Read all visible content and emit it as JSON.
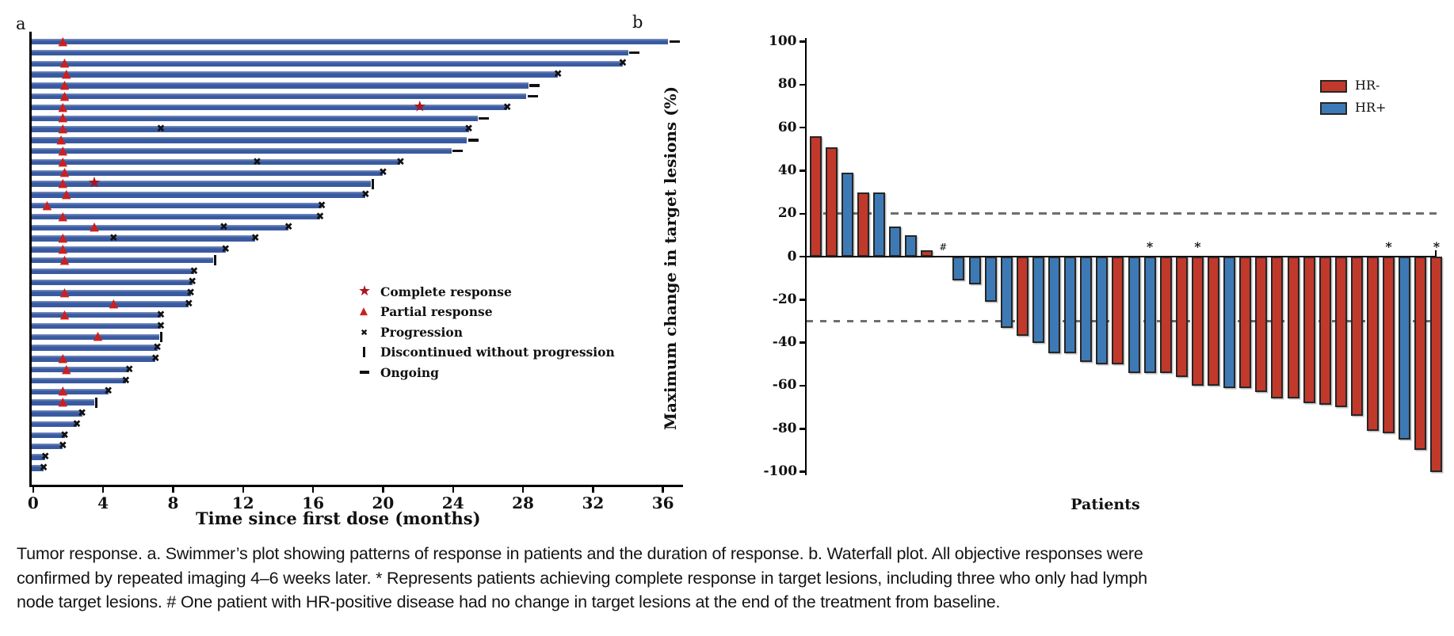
{
  "colors": {
    "swimmer_bar": "#3A5AA0",
    "swimmer_bar_highlight": "#8096C4",
    "hr_neg_red": "#C0392B",
    "hr_pos_blue": "#3D7AB5",
    "bar_border": "#262626",
    "triangle_red": "#CC2020",
    "star_red": "#A8151F",
    "marker_black": "#111111",
    "dash_gray": "#6E6E6E",
    "axis_black": "#000000"
  },
  "panel_a": {
    "label": "a",
    "xlabel": "Time since first dose (months)",
    "legend": [
      {
        "glyph": "star",
        "label": "Complete response"
      },
      {
        "glyph": "triangle",
        "label": "Partial response"
      },
      {
        "glyph": "x",
        "label": "Progression"
      },
      {
        "glyph": "bar",
        "label": "Discontinued without progression"
      },
      {
        "glyph": "dash",
        "label": "Ongoing"
      }
    ]
  },
  "panel_b": {
    "label": "b",
    "ylabel": "Maximum change in target lesions (%)",
    "xlabel": "Patients",
    "legend": [
      {
        "label": "HR-",
        "color": "#C0392B"
      },
      {
        "label": "HR+",
        "color": "#3D7AB5"
      }
    ]
  },
  "caption": {
    "lines": [
      "Tumor response. a. Swimmer’s plot showing patterns of response in patients and the duration of response. b. Waterfall plot. All objective responses were",
      "confirmed by repeated imaging 4–6 weeks later. * Represents patients achieving complete response in target lesions, including three who only had lymph",
      "node target lesions. # One patient with HR-positive disease had no change in target lesions at the end of the treatment from baseline."
    ]
  },
  "chart_data": [
    {
      "type": "bar",
      "subtype": "swimmer",
      "title": "a. Swimmer's plot: duration of treatment per patient (months)",
      "xlabel": "Time since first dose (months)",
      "xlim": [
        0,
        37.2
      ],
      "x_ticks": [
        0,
        4,
        8,
        12,
        16,
        20,
        24,
        28,
        32,
        36
      ],
      "grid": false,
      "marker_meanings": {
        "triangle": "Partial response",
        "star": "Complete response",
        "x": "Progression",
        "disc": "Discontinued without progression",
        "ongoing": "Ongoing"
      },
      "patients": [
        {
          "duration": 36.3,
          "end": "ongoing",
          "triangle": 1.7
        },
        {
          "duration": 34.0,
          "end": "ongoing"
        },
        {
          "duration": 33.7,
          "end": "x",
          "triangle": 1.8
        },
        {
          "duration": 30.0,
          "end": "x",
          "triangle": 1.9
        },
        {
          "duration": 28.3,
          "end": "ongoing",
          "triangle": 1.8
        },
        {
          "duration": 28.2,
          "end": "ongoing",
          "triangle": 1.8
        },
        {
          "duration": 27.1,
          "end": "x",
          "triangle": 1.7,
          "star": 22.1
        },
        {
          "duration": 25.4,
          "end": "ongoing",
          "triangle": 1.7
        },
        {
          "duration": 24.9,
          "end": "x",
          "triangle": 1.7,
          "x_mid": 7.3
        },
        {
          "duration": 24.8,
          "end": "ongoing",
          "triangle": 1.6
        },
        {
          "duration": 23.9,
          "end": "ongoing",
          "triangle": 1.7
        },
        {
          "duration": 21.0,
          "end": "x",
          "triangle": 1.7,
          "x_mid": 12.8
        },
        {
          "duration": 20.0,
          "end": "x",
          "triangle": 1.8
        },
        {
          "duration": 19.3,
          "end": "disc",
          "triangle": 1.7,
          "star": 3.5
        },
        {
          "duration": 19.0,
          "end": "x",
          "triangle": 1.9
        },
        {
          "duration": 16.5,
          "end": "x",
          "triangle": 0.8
        },
        {
          "duration": 16.4,
          "end": "x",
          "triangle": 1.7
        },
        {
          "duration": 14.6,
          "end": "x",
          "triangle": 3.5,
          "x_mid": 10.9
        },
        {
          "duration": 12.7,
          "end": "x",
          "triangle": 1.7,
          "x_mid": 4.6
        },
        {
          "duration": 11.0,
          "end": "x",
          "triangle": 1.7
        },
        {
          "duration": 10.3,
          "end": "disc",
          "triangle": 1.8
        },
        {
          "duration": 9.2,
          "end": "x"
        },
        {
          "duration": 9.1,
          "end": "x"
        },
        {
          "duration": 9.0,
          "end": "x",
          "triangle": 1.8
        },
        {
          "duration": 8.9,
          "end": "x",
          "triangle": 4.6
        },
        {
          "duration": 7.3,
          "end": "x",
          "triangle": 1.8
        },
        {
          "duration": 7.3,
          "end": "x"
        },
        {
          "duration": 7.2,
          "end": "disc",
          "triangle": 3.7
        },
        {
          "duration": 7.1,
          "end": "x"
        },
        {
          "duration": 7.0,
          "end": "x",
          "triangle": 1.7
        },
        {
          "duration": 5.5,
          "end": "x",
          "triangle": 1.9
        },
        {
          "duration": 5.3,
          "end": "x"
        },
        {
          "duration": 4.3,
          "end": "x",
          "triangle": 1.7
        },
        {
          "duration": 3.5,
          "end": "disc",
          "triangle": 1.7
        },
        {
          "duration": 2.8,
          "end": "x"
        },
        {
          "duration": 2.5,
          "end": "x"
        },
        {
          "duration": 1.8,
          "end": "x"
        },
        {
          "duration": 1.7,
          "end": "x"
        },
        {
          "duration": 0.7,
          "end": "x"
        },
        {
          "duration": 0.6,
          "end": "x"
        }
      ]
    },
    {
      "type": "bar",
      "subtype": "waterfall",
      "title": "b. Waterfall plot: maximum change in target lesions (%)",
      "ylabel": "Maximum change in target lesions (%)",
      "xlabel": "Patients",
      "ylim": [
        -100,
        100
      ],
      "y_ticks": [
        100,
        80,
        60,
        40,
        20,
        0,
        -20,
        -40,
        -60,
        -80,
        -100
      ],
      "reference_lines": [
        20,
        -30
      ],
      "legend_position": "top-right",
      "series_legend": [
        {
          "name": "HR-",
          "color": "#C0392B"
        },
        {
          "name": "HR+",
          "color": "#3D7AB5"
        }
      ],
      "bars": [
        {
          "value": 56,
          "group": "HR-"
        },
        {
          "value": 51,
          "group": "HR-"
        },
        {
          "value": 39,
          "group": "HR+"
        },
        {
          "value": 30,
          "group": "HR-"
        },
        {
          "value": 30,
          "group": "HR+"
        },
        {
          "value": 14,
          "group": "HR+"
        },
        {
          "value": 10,
          "group": "HR+"
        },
        {
          "value": 3,
          "group": "HR-"
        },
        {
          "value": 0,
          "group": "HR+",
          "note": "#"
        },
        {
          "value": -11,
          "group": "HR+"
        },
        {
          "value": -13,
          "group": "HR+"
        },
        {
          "value": -21,
          "group": "HR+"
        },
        {
          "value": -33,
          "group": "HR+"
        },
        {
          "value": -37,
          "group": "HR-"
        },
        {
          "value": -40,
          "group": "HR+"
        },
        {
          "value": -45,
          "group": "HR+"
        },
        {
          "value": -45,
          "group": "HR+"
        },
        {
          "value": -49,
          "group": "HR+"
        },
        {
          "value": -50,
          "group": "HR+"
        },
        {
          "value": -50,
          "group": "HR-"
        },
        {
          "value": -54,
          "group": "HR+"
        },
        {
          "value": -54,
          "group": "HR+",
          "note": "*"
        },
        {
          "value": -54,
          "group": "HR-"
        },
        {
          "value": -56,
          "group": "HR-"
        },
        {
          "value": -60,
          "group": "HR-",
          "note": "*"
        },
        {
          "value": -60,
          "group": "HR-"
        },
        {
          "value": -61,
          "group": "HR+"
        },
        {
          "value": -61,
          "group": "HR-"
        },
        {
          "value": -63,
          "group": "HR-"
        },
        {
          "value": -66,
          "group": "HR-"
        },
        {
          "value": -66,
          "group": "HR-"
        },
        {
          "value": -68,
          "group": "HR-"
        },
        {
          "value": -69,
          "group": "HR-"
        },
        {
          "value": -70,
          "group": "HR-"
        },
        {
          "value": -74,
          "group": "HR-"
        },
        {
          "value": -81,
          "group": "HR-"
        },
        {
          "value": -82,
          "group": "HR-",
          "note": "*"
        },
        {
          "value": -85,
          "group": "HR+"
        },
        {
          "value": -90,
          "group": "HR-"
        },
        {
          "value": -100,
          "group": "HR-",
          "note": "*"
        }
      ]
    }
  ]
}
